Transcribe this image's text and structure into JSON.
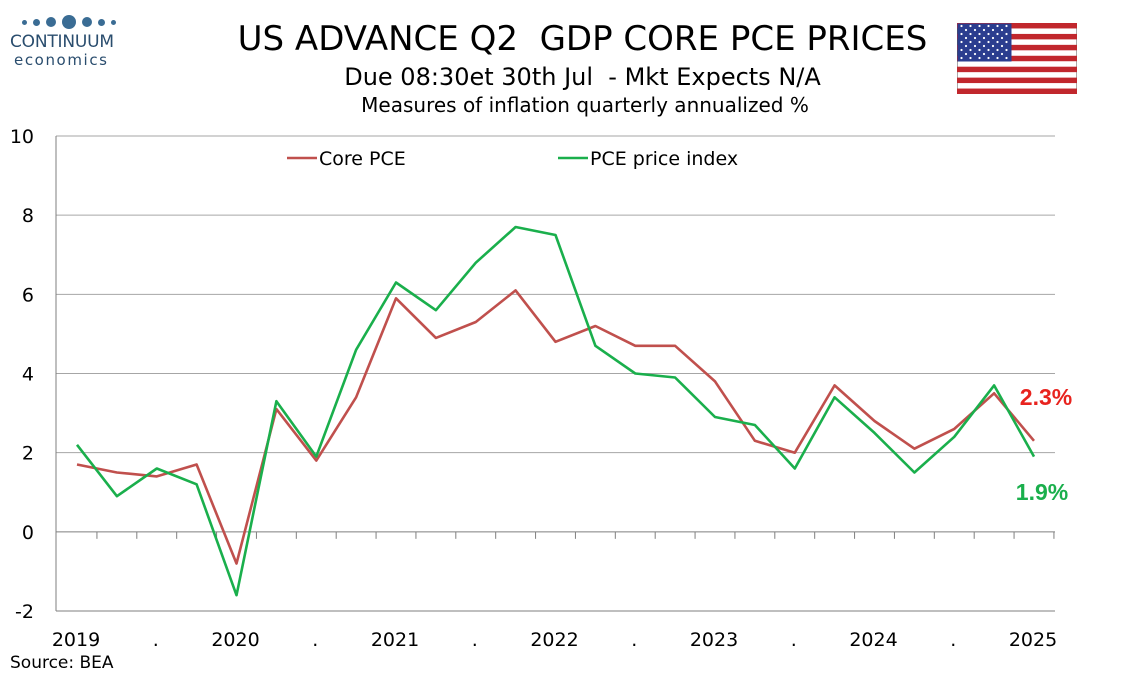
{
  "logo": {
    "name": "CONTINUUM",
    "sub": "economics"
  },
  "header": {
    "title": "US ADVANCE Q2  GDP CORE PCE PRICES",
    "subtitle": "Due 08:30et 30th Jul  - Mkt Expects N/A",
    "subtitle2": "Measures of inflation quarterly annualized %"
  },
  "source": "Source: BEA",
  "colors": {
    "core": "#c0504d",
    "pce": "#1aaf4c",
    "grid": "#a6a6a6",
    "axis": "#7f7f7f",
    "label_core": "#e8231e",
    "label_pce": "#1aaf4c"
  },
  "chart_data": {
    "type": "line",
    "ylim": [
      -2,
      10
    ],
    "yticks": [
      -2,
      0,
      2,
      4,
      6,
      8,
      10
    ],
    "x_tick_labels": [
      "2019",
      ".",
      "2020",
      ".",
      "2021",
      ".",
      "2022",
      ".",
      "2023",
      ".",
      "2024",
      ".",
      "2025"
    ],
    "legend_position": "top",
    "grid": true,
    "series": [
      {
        "name": "Core PCE",
        "values": [
          1.7,
          1.5,
          1.4,
          1.7,
          -0.8,
          3.1,
          1.8,
          3.4,
          5.9,
          4.9,
          5.3,
          6.1,
          4.8,
          5.2,
          4.7,
          4.7,
          3.8,
          2.3,
          2.0,
          3.7,
          2.8,
          2.1,
          2.6,
          3.5,
          2.3
        ]
      },
      {
        "name": "PCE price index",
        "values": [
          2.2,
          0.9,
          1.6,
          1.2,
          -1.6,
          3.3,
          1.9,
          4.6,
          6.3,
          5.6,
          6.8,
          7.7,
          7.5,
          4.7,
          4.0,
          3.9,
          2.9,
          2.7,
          1.6,
          3.4,
          2.5,
          1.5,
          2.4,
          3.7,
          1.9
        ]
      }
    ],
    "annotations": [
      {
        "text": "2.3%",
        "series": "Core PCE"
      },
      {
        "text": "1.9%",
        "series": "PCE price index"
      }
    ]
  }
}
